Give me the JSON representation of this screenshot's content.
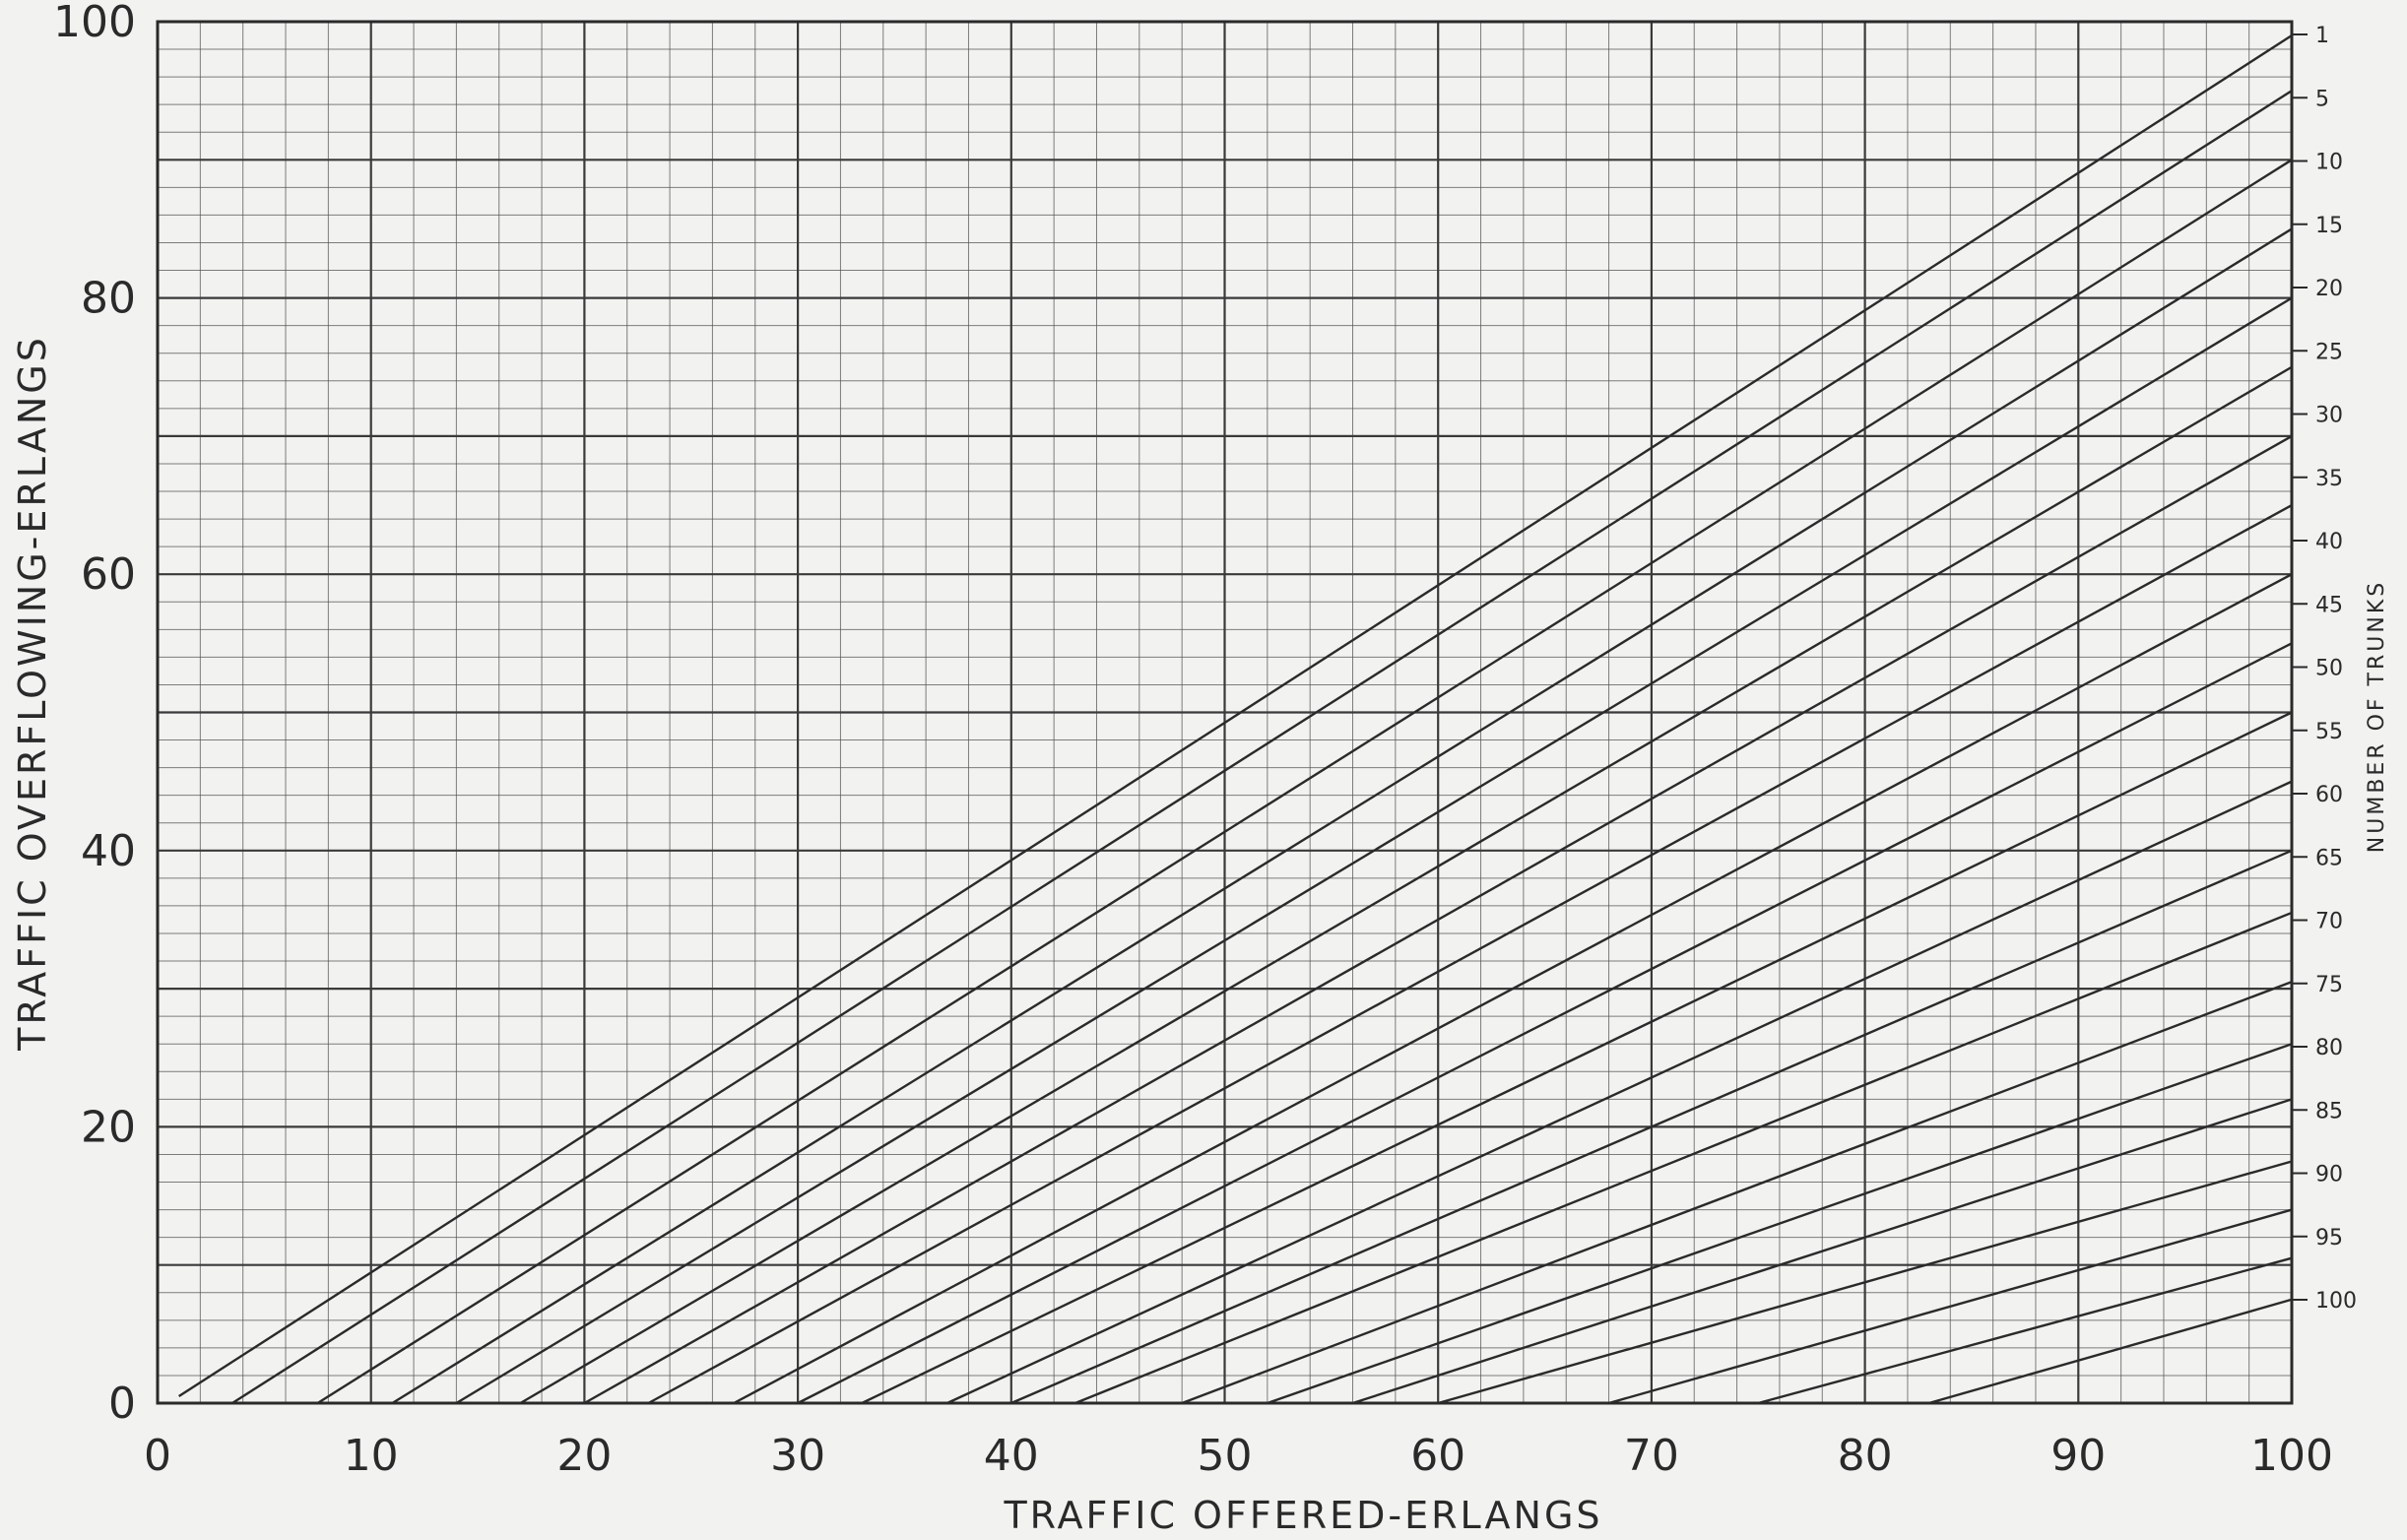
{
  "chart_data": {
    "type": "line",
    "title": "",
    "xlabel": "TRAFFIC OFFERED-ERLANGS",
    "ylabel": "TRAFFIC OVERFLOWING-ERLANGS",
    "right_label": "NUMBER OF TRUNKS",
    "xlim": [
      0,
      100
    ],
    "ylim": [
      0,
      100
    ],
    "x_ticks": [
      "0",
      "10",
      "20",
      "30",
      "40",
      "50",
      "60",
      "70",
      "80",
      "90",
      "100"
    ],
    "y_ticks": [
      "0",
      "20",
      "40",
      "60",
      "80",
      "100"
    ],
    "right_ticks": [
      "1",
      "5",
      "10",
      "15",
      "20",
      "25",
      "30",
      "35",
      "40",
      "45",
      "50",
      "55",
      "60",
      "65",
      "70",
      "75",
      "80",
      "85",
      "90",
      "95",
      "100"
    ],
    "grid": true,
    "series": [
      {
        "trunks": 1,
        "x": [
          1,
          100
        ],
        "y": [
          0.5,
          99.0
        ]
      },
      {
        "trunks": 5,
        "x": [
          3.5,
          100
        ],
        "y": [
          0,
          95.0
        ]
      },
      {
        "trunks": 10,
        "x": [
          7.5,
          100
        ],
        "y": [
          0,
          90.0
        ]
      },
      {
        "trunks": 15,
        "x": [
          11,
          100
        ],
        "y": [
          0,
          85.0
        ]
      },
      {
        "trunks": 20,
        "x": [
          14,
          100
        ],
        "y": [
          0,
          80.0
        ]
      },
      {
        "trunks": 25,
        "x": [
          17,
          100
        ],
        "y": [
          0,
          75.0
        ]
      },
      {
        "trunks": 30,
        "x": [
          20,
          100
        ],
        "y": [
          0,
          70.0
        ]
      },
      {
        "trunks": 35,
        "x": [
          23,
          100
        ],
        "y": [
          0,
          65.0
        ]
      },
      {
        "trunks": 40,
        "x": [
          27,
          100
        ],
        "y": [
          0,
          60.0
        ]
      },
      {
        "trunks": 45,
        "x": [
          30,
          100
        ],
        "y": [
          0,
          55.0
        ]
      },
      {
        "trunks": 50,
        "x": [
          33,
          100
        ],
        "y": [
          0,
          50.0
        ]
      },
      {
        "trunks": 55,
        "x": [
          37,
          100
        ],
        "y": [
          0,
          45.0
        ]
      },
      {
        "trunks": 60,
        "x": [
          40,
          100
        ],
        "y": [
          0,
          40.0
        ]
      },
      {
        "trunks": 65,
        "x": [
          43,
          100
        ],
        "y": [
          0,
          35.5
        ]
      },
      {
        "trunks": 70,
        "x": [
          48,
          100
        ],
        "y": [
          0,
          30.5
        ]
      },
      {
        "trunks": 75,
        "x": [
          52,
          100
        ],
        "y": [
          0,
          26.0
        ]
      },
      {
        "trunks": 80,
        "x": [
          56,
          100
        ],
        "y": [
          0,
          22.0
        ]
      },
      {
        "trunks": 85,
        "x": [
          60,
          100
        ],
        "y": [
          0,
          17.5
        ]
      },
      {
        "trunks": 90,
        "x": [
          68,
          100
        ],
        "y": [
          0,
          14.0
        ]
      },
      {
        "trunks": 95,
        "x": [
          75,
          100
        ],
        "y": [
          0,
          10.5
        ]
      },
      {
        "trunks": 100,
        "x": [
          83,
          100
        ],
        "y": [
          0,
          7.5
        ]
      }
    ]
  },
  "style": {
    "background": "#f2f2f0",
    "ink": "#2a2a2a",
    "grid_major": "#3a3a3a",
    "grid_minor": "#555555"
  }
}
